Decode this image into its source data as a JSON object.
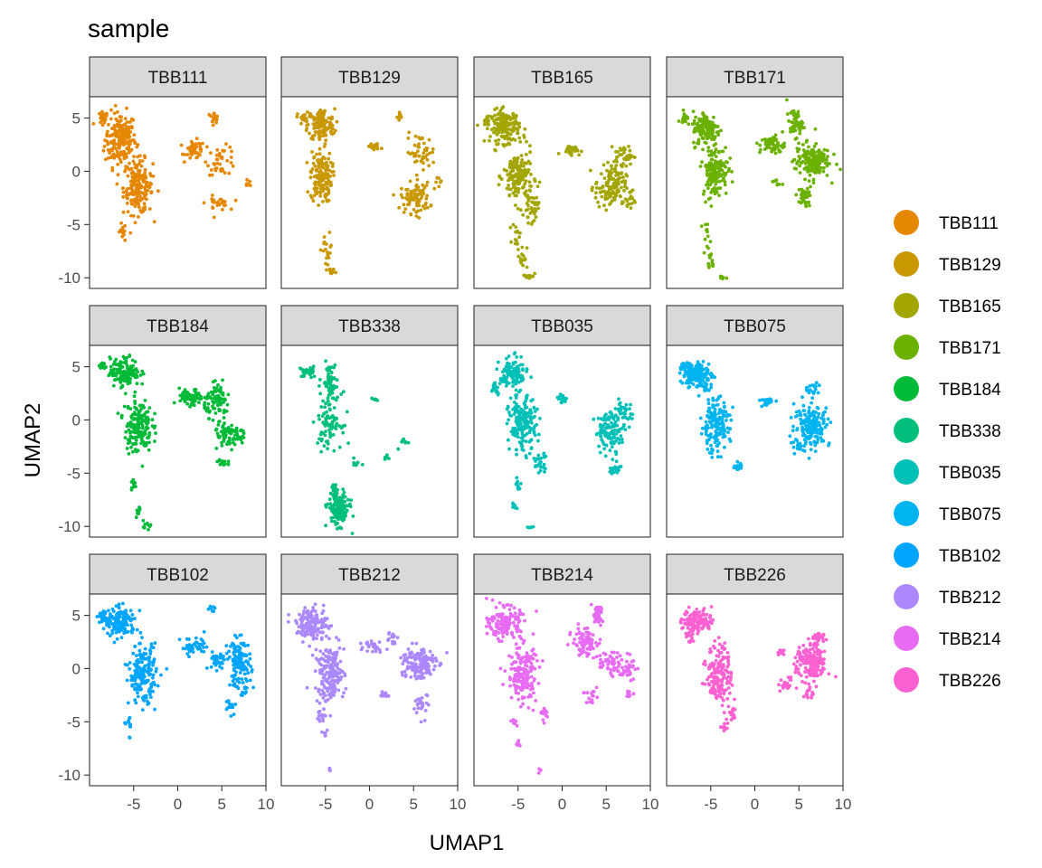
{
  "chart_data": {
    "type": "scatter",
    "title": "sample",
    "xlabel": "UMAP1",
    "ylabel": "UMAP2",
    "xlim": [
      -10,
      10
    ],
    "ylim": [
      -11,
      7
    ],
    "x_ticks": [
      -5,
      0,
      5,
      10
    ],
    "y_ticks": [
      -10,
      -5,
      0,
      5
    ],
    "x_tick_labels": [
      "-5",
      "0",
      "5",
      "10"
    ],
    "y_tick_labels": [
      "-10",
      "-5",
      "0",
      "5"
    ],
    "facet_grid": {
      "nrow": 3,
      "ncol": 4
    },
    "legend": {
      "placement": "right",
      "entries": [
        "TBB111",
        "TBB129",
        "TBB165",
        "TBB171",
        "TBB184",
        "TBB338",
        "TBB035",
        "TBB075",
        "TBB102",
        "TBB212",
        "TBB214",
        "TBB226"
      ]
    },
    "series": [
      {
        "name": "TBB111",
        "color": "#E58700",
        "clusters": [
          [
            -6.5,
            3.0,
            1.6,
            2.3,
            200
          ],
          [
            -4.5,
            -1.5,
            1.5,
            2.3,
            180
          ],
          [
            -8.5,
            5.0,
            0.5,
            0.5,
            25
          ],
          [
            -6.3,
            -5.8,
            0.4,
            0.8,
            12
          ],
          [
            2.0,
            2.0,
            1.0,
            0.8,
            50
          ],
          [
            5.0,
            1.0,
            1.5,
            1.2,
            40
          ],
          [
            4.0,
            5.0,
            0.6,
            0.5,
            15
          ],
          [
            4.5,
            -3.0,
            1.2,
            0.6,
            25
          ],
          [
            8.0,
            -1.2,
            0.5,
            0.5,
            6
          ]
        ]
      },
      {
        "name": "TBB129",
        "color": "#C99800",
        "clusters": [
          [
            -5.5,
            4.3,
            1.4,
            1.4,
            140
          ],
          [
            -5.5,
            -0.5,
            1.1,
            2.2,
            140
          ],
          [
            -7.5,
            5.0,
            0.6,
            0.5,
            20
          ],
          [
            -4.8,
            -7.5,
            0.6,
            1.5,
            18
          ],
          [
            -4.3,
            -9.5,
            0.5,
            0.3,
            10
          ],
          [
            0.5,
            2.3,
            0.7,
            0.3,
            20
          ],
          [
            5.2,
            -2.5,
            1.5,
            1.3,
            90
          ],
          [
            5.8,
            1.8,
            1.5,
            1.5,
            45
          ],
          [
            3.5,
            5.2,
            0.3,
            0.5,
            10
          ],
          [
            8.0,
            -1.0,
            0.5,
            0.5,
            6
          ]
        ]
      },
      {
        "name": "TBB165",
        "color": "#A3A500",
        "clusters": [
          [
            -6.5,
            4.2,
            1.5,
            1.4,
            150
          ],
          [
            -5.0,
            -0.5,
            1.5,
            2.3,
            160
          ],
          [
            -3.5,
            -3.5,
            0.7,
            1.2,
            40
          ],
          [
            -8.5,
            4.8,
            0.4,
            0.5,
            15
          ],
          [
            -5.2,
            -6.0,
            0.4,
            1.0,
            15
          ],
          [
            -4.5,
            -8.0,
            0.5,
            1.0,
            15
          ],
          [
            -3.8,
            -9.8,
            0.6,
            0.3,
            12
          ],
          [
            1.0,
            2.0,
            1.0,
            0.4,
            30
          ],
          [
            5.5,
            -1.5,
            1.6,
            1.8,
            130
          ],
          [
            7.0,
            1.5,
            1.0,
            0.8,
            40
          ],
          [
            7.5,
            -2.8,
            0.7,
            0.7,
            15
          ]
        ]
      },
      {
        "name": "TBB171",
        "color": "#6BB100",
        "clusters": [
          [
            -5.5,
            4.0,
            1.4,
            1.5,
            140
          ],
          [
            -4.5,
            0.0,
            1.3,
            2.2,
            150
          ],
          [
            -8.0,
            5.0,
            0.4,
            0.4,
            15
          ],
          [
            -5.5,
            -6.0,
            0.4,
            1.0,
            12
          ],
          [
            -5.0,
            -8.5,
            0.4,
            0.8,
            12
          ],
          [
            -3.5,
            -10.0,
            0.4,
            0.2,
            8
          ],
          [
            2.0,
            2.5,
            1.3,
            0.8,
            60
          ],
          [
            4.5,
            4.5,
            0.8,
            1.2,
            50
          ],
          [
            6.5,
            1.0,
            1.8,
            1.5,
            160
          ],
          [
            5.5,
            -2.5,
            0.8,
            0.8,
            35
          ],
          [
            2.5,
            -1.0,
            0.5,
            0.5,
            10
          ]
        ]
      },
      {
        "name": "TBB184",
        "color": "#00BA38",
        "clusters": [
          [
            -6.0,
            4.5,
            1.5,
            1.2,
            150
          ],
          [
            -4.5,
            -0.5,
            1.4,
            2.3,
            170
          ],
          [
            -8.5,
            5.0,
            0.4,
            0.3,
            15
          ],
          [
            -5.0,
            -6.0,
            0.3,
            0.8,
            10
          ],
          [
            -4.5,
            -8.5,
            0.3,
            0.5,
            8
          ],
          [
            -3.5,
            -9.8,
            0.5,
            0.3,
            10
          ],
          [
            1.5,
            2.0,
            1.2,
            0.8,
            70
          ],
          [
            4.5,
            1.8,
            1.3,
            1.3,
            80
          ],
          [
            5.5,
            -1.5,
            1.2,
            1.2,
            60
          ],
          [
            7.0,
            -1.5,
            0.8,
            0.8,
            20
          ],
          [
            5.0,
            -4.0,
            0.6,
            0.5,
            12
          ]
        ]
      },
      {
        "name": "TBB338",
        "color": "#00BF7D",
        "clusters": [
          [
            -7.0,
            4.5,
            0.9,
            0.5,
            30
          ],
          [
            -4.5,
            4.0,
            0.8,
            1.3,
            50
          ],
          [
            -4.5,
            0.0,
            1.2,
            2.3,
            100
          ],
          [
            -3.5,
            -8.5,
            1.1,
            1.3,
            150
          ],
          [
            -4.0,
            -6.8,
            0.4,
            0.7,
            25
          ],
          [
            -1.5,
            -4.0,
            0.3,
            0.4,
            10
          ],
          [
            2.0,
            -3.5,
            0.5,
            0.3,
            6
          ],
          [
            4.0,
            -2.0,
            0.6,
            0.5,
            8
          ],
          [
            0.5,
            2.0,
            0.3,
            0.2,
            6
          ]
        ]
      },
      {
        "name": "TBB035",
        "color": "#00C0B8",
        "clusters": [
          [
            -5.5,
            4.2,
            1.4,
            1.4,
            120
          ],
          [
            -4.5,
            -0.5,
            1.4,
            2.3,
            170
          ],
          [
            -2.5,
            -4.0,
            0.8,
            0.8,
            30
          ],
          [
            -7.5,
            3.0,
            0.5,
            0.5,
            15
          ],
          [
            -5.0,
            -6.0,
            0.3,
            0.6,
            10
          ],
          [
            -5.5,
            -8.0,
            0.3,
            0.4,
            6
          ],
          [
            -3.5,
            -10.0,
            0.3,
            0.2,
            5
          ],
          [
            0.0,
            2.0,
            0.6,
            0.4,
            15
          ],
          [
            5.5,
            -1.0,
            1.6,
            1.6,
            120
          ],
          [
            7.0,
            1.0,
            0.8,
            1.0,
            30
          ],
          [
            6.0,
            -4.5,
            0.6,
            0.6,
            20
          ]
        ]
      },
      {
        "name": "TBB075",
        "color": "#00B4EF",
        "clusters": [
          [
            -6.5,
            4.2,
            1.5,
            1.2,
            150
          ],
          [
            -4.5,
            -0.5,
            1.5,
            2.3,
            170
          ],
          [
            -8.0,
            5.0,
            0.6,
            0.4,
            20
          ],
          [
            -2.0,
            -4.5,
            0.5,
            0.5,
            15
          ],
          [
            1.5,
            1.8,
            0.8,
            0.4,
            25
          ],
          [
            6.5,
            -0.5,
            1.8,
            1.7,
            170
          ],
          [
            6.5,
            3.0,
            0.7,
            0.5,
            20
          ],
          [
            5.0,
            -2.5,
            0.7,
            0.7,
            20
          ]
        ]
      },
      {
        "name": "TBB102",
        "color": "#00A5FF",
        "clusters": [
          [
            -6.5,
            4.3,
            1.6,
            1.2,
            150
          ],
          [
            -4.0,
            -0.5,
            1.4,
            2.5,
            180
          ],
          [
            -8.5,
            5.0,
            0.5,
            0.4,
            20
          ],
          [
            -5.5,
            -5.3,
            0.3,
            0.5,
            10
          ],
          [
            -5.5,
            -6.5,
            0.2,
            0.2,
            3
          ],
          [
            2.0,
            2.0,
            1.5,
            0.8,
            40
          ],
          [
            4.0,
            5.5,
            0.4,
            0.5,
            8
          ],
          [
            4.5,
            0.8,
            1.0,
            0.8,
            40
          ],
          [
            7.0,
            0.5,
            1.2,
            2.0,
            120
          ],
          [
            6.0,
            -3.5,
            0.5,
            0.8,
            12
          ],
          [
            7.5,
            -2.0,
            0.6,
            0.5,
            10
          ]
        ]
      },
      {
        "name": "TBB212",
        "color": "#AC88FF",
        "clusters": [
          [
            -6.5,
            4.2,
            1.6,
            1.3,
            150
          ],
          [
            -4.5,
            -0.5,
            1.5,
            2.5,
            180
          ],
          [
            -5.5,
            -4.5,
            0.5,
            0.5,
            15
          ],
          [
            -5.0,
            -6.0,
            0.3,
            0.4,
            6
          ],
          [
            -4.5,
            -9.5,
            0.2,
            0.2,
            4
          ],
          [
            0.5,
            2.2,
            1.0,
            0.6,
            25
          ],
          [
            2.5,
            3.0,
            0.6,
            0.6,
            15
          ],
          [
            5.5,
            0.5,
            1.8,
            1.5,
            150
          ],
          [
            6.0,
            -3.5,
            0.8,
            1.0,
            25
          ],
          [
            2.0,
            -2.5,
            0.8,
            0.5,
            12
          ]
        ]
      },
      {
        "name": "TBB214",
        "color": "#E76BF3",
        "clusters": [
          [
            -6.5,
            4.3,
            1.6,
            1.3,
            150
          ],
          [
            -4.5,
            -0.5,
            1.5,
            2.5,
            170
          ],
          [
            -5.5,
            -5.0,
            0.3,
            0.3,
            8
          ],
          [
            -5.0,
            -7.0,
            0.3,
            0.4,
            6
          ],
          [
            -2.5,
            -9.5,
            0.2,
            0.2,
            3
          ],
          [
            -2.0,
            -4.2,
            0.6,
            0.6,
            20
          ],
          [
            2.5,
            2.5,
            1.2,
            1.2,
            90
          ],
          [
            4.0,
            5.0,
            0.6,
            0.8,
            40
          ],
          [
            5.5,
            0.5,
            1.2,
            1.0,
            50
          ],
          [
            7.5,
            0.0,
            0.8,
            1.0,
            30
          ],
          [
            3.0,
            -2.5,
            0.8,
            0.6,
            15
          ],
          [
            7.5,
            -2.5,
            0.5,
            0.5,
            8
          ]
        ]
      },
      {
        "name": "TBB226",
        "color": "#FD61D1",
        "clusters": [
          [
            -6.5,
            4.5,
            1.5,
            1.0,
            120
          ],
          [
            -4.0,
            -0.5,
            1.3,
            2.5,
            160
          ],
          [
            -2.5,
            -4.2,
            0.6,
            0.6,
            20
          ],
          [
            -3.5,
            -5.5,
            0.4,
            0.5,
            10
          ],
          [
            -7.5,
            3.0,
            0.5,
            0.6,
            15
          ],
          [
            3.0,
            1.5,
            0.5,
            0.3,
            10
          ],
          [
            6.5,
            0.5,
            1.6,
            1.7,
            170
          ],
          [
            7.0,
            2.8,
            0.7,
            0.6,
            25
          ],
          [
            3.5,
            -1.5,
            0.8,
            0.6,
            20
          ],
          [
            6.0,
            -2.5,
            0.6,
            0.5,
            12
          ]
        ]
      }
    ]
  }
}
